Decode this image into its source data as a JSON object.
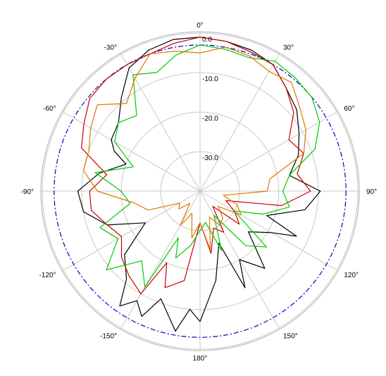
{
  "chart_data": {
    "type": "polar-line",
    "angle_zero": "top",
    "angle_direction": "clockwise",
    "angle_ticks": [
      {
        "angle": 0,
        "label": "0°"
      },
      {
        "angle": 30,
        "label": "30°"
      },
      {
        "angle": 60,
        "label": "60°"
      },
      {
        "angle": 90,
        "label": "90°"
      },
      {
        "angle": 120,
        "label": "120°"
      },
      {
        "angle": 150,
        "label": "150°"
      },
      {
        "angle": 180,
        "label": "180°"
      },
      {
        "angle": 210,
        "label": "-150°"
      },
      {
        "angle": 240,
        "label": "-120°"
      },
      {
        "angle": 270,
        "label": "-90°"
      },
      {
        "angle": 300,
        "label": "-60°"
      },
      {
        "angle": 330,
        "label": "-30°"
      }
    ],
    "radial_range": [
      -40,
      0
    ],
    "radial_ticks": [
      {
        "value": -30,
        "label": "-30.0"
      },
      {
        "value": -20,
        "label": "-20.0"
      },
      {
        "value": -10,
        "label": "-10.0"
      },
      {
        "value": 0,
        "label": "0.0"
      }
    ],
    "reference_circle": {
      "value": -3,
      "color": "#0000cc",
      "style": "dash-dot"
    },
    "grid": true,
    "legend": "none",
    "series": [
      {
        "color": "#000000",
        "points": [
          [
            0,
            -1.0
          ],
          [
            10,
            -1.5
          ],
          [
            20,
            -2.0
          ],
          [
            30,
            -3.0
          ],
          [
            40,
            -6.0
          ],
          [
            50,
            -8.0
          ],
          [
            60,
            -11.0
          ],
          [
            70,
            -13.5
          ],
          [
            80,
            -17.0
          ],
          [
            90,
            -9.5
          ],
          [
            100,
            -13.0
          ],
          [
            110,
            -22.0
          ],
          [
            115,
            -13.0
          ],
          [
            120,
            -19.0
          ],
          [
            130,
            -24.0
          ],
          [
            140,
            -14.5
          ],
          [
            150,
            -20.0
          ],
          [
            155,
            -13.0
          ],
          [
            160,
            -26.0
          ],
          [
            170,
            -17.0
          ],
          [
            180,
            -7.0
          ],
          [
            185,
            -10.0
          ],
          [
            190,
            -4.0
          ],
          [
            200,
            -11.0
          ],
          [
            205,
            -5.0
          ],
          [
            210,
            -8.0
          ],
          [
            215,
            -4.5
          ],
          [
            220,
            -11.0
          ],
          [
            230,
            -15.0
          ],
          [
            240,
            -24.0
          ],
          [
            250,
            -15.0
          ],
          [
            260,
            -10.0
          ],
          [
            270,
            -9.0
          ],
          [
            280,
            -14.0
          ],
          [
            290,
            -20.0
          ],
          [
            295,
            -16.0
          ],
          [
            300,
            -14.0
          ],
          [
            310,
            -13.0
          ],
          [
            320,
            -9.0
          ],
          [
            330,
            -4.0
          ],
          [
            340,
            -2.0
          ],
          [
            350,
            -1.0
          ],
          [
            360,
            -1.0
          ]
        ]
      },
      {
        "color": "#cc0000",
        "points": [
          [
            0,
            -1.0
          ],
          [
            10,
            -1.5
          ],
          [
            20,
            -2.5
          ],
          [
            30,
            -3.0
          ],
          [
            40,
            -6.0
          ],
          [
            50,
            -9.0
          ],
          [
            60,
            -14.0
          ],
          [
            70,
            -12.0
          ],
          [
            80,
            -15.0
          ],
          [
            90,
            -12.0
          ],
          [
            100,
            -19.0
          ],
          [
            110,
            -33.0
          ],
          [
            120,
            -30.0
          ],
          [
            130,
            -27.0
          ],
          [
            140,
            -35.0
          ],
          [
            150,
            -28.0
          ],
          [
            160,
            -30.0
          ],
          [
            170,
            -24.0
          ],
          [
            180,
            -32.0
          ],
          [
            190,
            -17.0
          ],
          [
            200,
            -14.0
          ],
          [
            205,
            -20.0
          ],
          [
            210,
            -10.0
          ],
          [
            220,
            -12.0
          ],
          [
            230,
            -14.0
          ],
          [
            240,
            -17.0
          ],
          [
            250,
            -15.0
          ],
          [
            260,
            -12.0
          ],
          [
            270,
            -12.0
          ],
          [
            280,
            -16.0
          ],
          [
            290,
            -8.0
          ],
          [
            300,
            -6.0
          ],
          [
            310,
            -3.5
          ],
          [
            320,
            -3.0
          ],
          [
            330,
            -3.0
          ],
          [
            340,
            -3.0
          ],
          [
            350,
            -2.0
          ],
          [
            360,
            -1.0
          ]
        ]
      },
      {
        "color": "#00cc00",
        "points": [
          [
            0,
            -3.0
          ],
          [
            10,
            -3.5
          ],
          [
            20,
            -4.0
          ],
          [
            30,
            -2.0
          ],
          [
            40,
            -2.5
          ],
          [
            50,
            -3.0
          ],
          [
            60,
            -5.0
          ],
          [
            70,
            -9.0
          ],
          [
            80,
            -17.0
          ],
          [
            90,
            -19.0
          ],
          [
            100,
            -17.0
          ],
          [
            110,
            -23.0
          ],
          [
            120,
            -30.0
          ],
          [
            130,
            -18.0
          ],
          [
            140,
            -22.0
          ],
          [
            150,
            -33.0
          ],
          [
            160,
            -24.0
          ],
          [
            170,
            -32.0
          ],
          [
            180,
            -30.0
          ],
          [
            190,
            -26.0
          ],
          [
            200,
            -22.0
          ],
          [
            205,
            -27.0
          ],
          [
            210,
            -12.0
          ],
          [
            220,
            -17.0
          ],
          [
            230,
            -9.0
          ],
          [
            240,
            -16.0
          ],
          [
            250,
            -13.0
          ],
          [
            260,
            -22.0
          ],
          [
            270,
            -20.0
          ],
          [
            280,
            -13.0
          ],
          [
            290,
            -22.0
          ],
          [
            300,
            -15.0
          ],
          [
            310,
            -13.0
          ],
          [
            320,
            -15.0
          ],
          [
            330,
            -6.0
          ],
          [
            340,
            -8.0
          ],
          [
            350,
            -5.0
          ],
          [
            360,
            -3.0
          ]
        ]
      },
      {
        "color": "#e07800",
        "points": [
          [
            0,
            -5.0
          ],
          [
            10,
            -3.0
          ],
          [
            20,
            -3.5
          ],
          [
            30,
            -5.0
          ],
          [
            40,
            -4.0
          ],
          [
            50,
            -7.0
          ],
          [
            60,
            -9.0
          ],
          [
            70,
            -12.0
          ],
          [
            80,
            -22.0
          ],
          [
            90,
            -23.0
          ],
          [
            100,
            -34.0
          ],
          [
            110,
            -30.0
          ],
          [
            120,
            -28.0
          ],
          [
            130,
            -34.0
          ],
          [
            140,
            -31.0
          ],
          [
            150,
            -30.0
          ],
          [
            160,
            -33.0
          ],
          [
            170,
            -25.0
          ],
          [
            180,
            -32.0
          ],
          [
            190,
            -28.0
          ],
          [
            200,
            -34.0
          ],
          [
            210,
            -30.0
          ],
          [
            220,
            -36.0
          ],
          [
            230,
            -33.0
          ],
          [
            240,
            -34.0
          ],
          [
            250,
            -26.0
          ],
          [
            260,
            -23.0
          ],
          [
            270,
            -14.0
          ],
          [
            280,
            -10.0
          ],
          [
            290,
            -10.0
          ],
          [
            300,
            -8.0
          ],
          [
            310,
            -6.0
          ],
          [
            320,
            -11.0
          ],
          [
            330,
            -7.0
          ],
          [
            340,
            -3.0
          ],
          [
            350,
            -4.0
          ],
          [
            360,
            -5.0
          ]
        ]
      }
    ]
  }
}
